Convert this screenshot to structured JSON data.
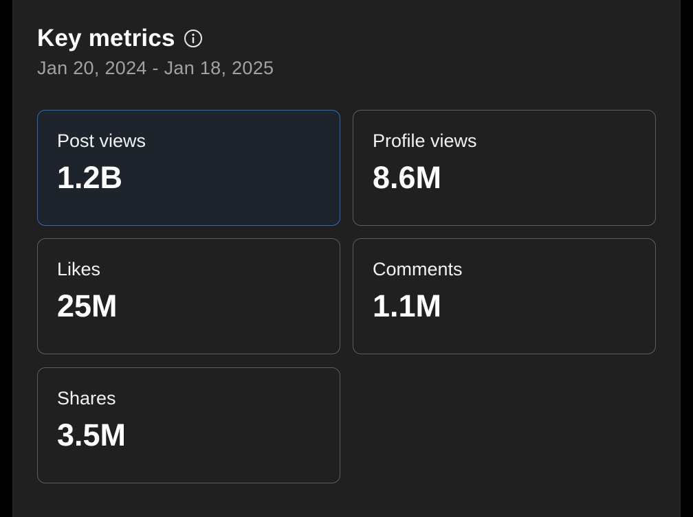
{
  "header": {
    "title": "Key metrics",
    "info_icon": "info-circle-icon",
    "date_range": "Jan 20, 2024 - Jan 18, 2025"
  },
  "colors": {
    "background": "#202020",
    "selected_border": "#2a6ebf",
    "card_border": "#5f5f5f"
  },
  "metrics": [
    {
      "label": "Post views",
      "value": "1.2B",
      "selected": true
    },
    {
      "label": "Profile views",
      "value": "8.6M",
      "selected": false
    },
    {
      "label": "Likes",
      "value": "25M",
      "selected": false
    },
    {
      "label": "Comments",
      "value": "1.1M",
      "selected": false
    },
    {
      "label": "Shares",
      "value": "3.5M",
      "selected": false
    }
  ]
}
